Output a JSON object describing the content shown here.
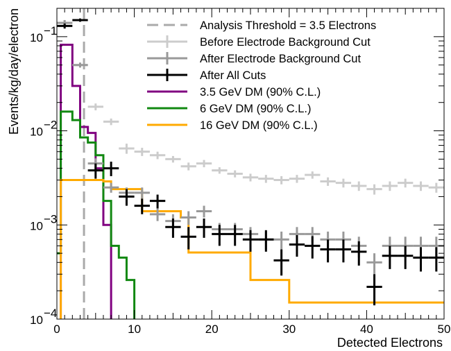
{
  "chart_data": {
    "type": "line",
    "xlabel": "Detected Electrons",
    "ylabel": "Events/kg/day/electron",
    "xlim": [
      0,
      50
    ],
    "ylim": [
      0.0001,
      0.2
    ],
    "yscale": "log",
    "grid": false,
    "legend_placement": "top-right",
    "x_ticks": [
      0,
      10,
      20,
      30,
      40,
      50
    ],
    "x_tick_labels": [
      "0",
      "10",
      "20",
      "30",
      "40",
      "50"
    ],
    "y_ticks": [
      0.0001,
      0.001,
      0.01,
      0.1
    ],
    "y_tick_labels": [
      "10",
      "10",
      "10",
      "10"
    ],
    "y_tick_exponents": [
      "−4",
      "−3",
      "−2",
      "−1"
    ],
    "threshold": {
      "x": 3.5,
      "name": "Analysis Threshold = 3.5 Electrons",
      "color": "#aaaaaa"
    },
    "series": [
      {
        "name": "Before Electrode Background Cut",
        "style": "points",
        "color": "#cccccc",
        "x_centers": [
          1,
          3,
          5,
          7,
          9,
          11,
          13,
          15,
          17,
          19,
          21,
          23,
          25,
          27,
          29,
          31,
          33,
          35,
          37,
          39,
          41,
          43,
          45,
          47,
          49
        ],
        "values": [
          0.14,
          0.05,
          0.018,
          0.0125,
          0.0065,
          0.006,
          0.0055,
          0.005,
          0.0042,
          0.0045,
          0.0038,
          0.0035,
          0.0032,
          0.0031,
          0.003,
          0.0031,
          0.0034,
          0.0029,
          0.0028,
          0.0026,
          0.0024,
          0.0026,
          0.0028,
          0.0026,
          0.0025
        ],
        "y_err": [
          0.01,
          0.003,
          0.0015,
          0.001,
          0.0008,
          0.0006,
          0.0005,
          0.0004,
          0.0004,
          0.0004,
          0.0003,
          0.0003,
          0.0003,
          0.0003,
          0.0003,
          0.0003,
          0.0003,
          0.0003,
          0.0003,
          0.0003,
          0.0003,
          0.0003,
          0.0003,
          0.0003,
          0.0003
        ]
      },
      {
        "name": "After Electrode Background Cut",
        "style": "points",
        "color": "#999999",
        "x_centers": [
          1,
          3,
          5,
          7,
          9,
          11,
          13,
          15,
          17,
          19,
          21,
          23,
          25,
          27,
          29,
          31,
          33,
          35,
          37,
          39,
          41,
          43,
          45,
          47,
          49
        ],
        "values": [
          0.14,
          0.05,
          0.0045,
          0.0025,
          0.0022,
          0.0022,
          0.0013,
          0.0011,
          0.0012,
          0.0014,
          0.0009,
          0.0009,
          0.0008,
          0.0007,
          0.0007,
          0.0008,
          0.0008,
          0.0007,
          0.0007,
          0.0006,
          0.0004,
          0.0006,
          0.0006,
          0.0006,
          0.0006
        ],
        "y_err": [
          0.01,
          0.003,
          0.0006,
          0.0003,
          0.0003,
          0.0003,
          0.0002,
          0.0002,
          0.0002,
          0.0002,
          0.00015,
          0.00015,
          0.00015,
          0.00015,
          0.00015,
          0.00015,
          0.00015,
          0.00015,
          0.00015,
          0.00015,
          0.0001,
          0.00015,
          0.00015,
          0.00015,
          0.00015
        ]
      },
      {
        "name": "After All Cuts",
        "style": "points",
        "color": "#000000",
        "x_centers": [
          1,
          3,
          5,
          7,
          9,
          11,
          13,
          15,
          17,
          19,
          21,
          23,
          25,
          27,
          29,
          31,
          33,
          35,
          37,
          39,
          41,
          43,
          45,
          47,
          49
        ],
        "values": [
          0.13,
          0.15,
          0.0038,
          0.004,
          0.002,
          0.0016,
          0.0018,
          0.00095,
          0.00075,
          0.00095,
          0.0008,
          0.0008,
          0.0007,
          0.0007,
          0.00042,
          0.00062,
          0.0006,
          0.00055,
          0.00055,
          0.00052,
          0.00022,
          0.00047,
          0.00047,
          0.00045,
          0.00045
        ],
        "y_err": [
          0.008,
          0.006,
          0.0007,
          0.0007,
          0.0004,
          0.0003,
          0.0003,
          0.00022,
          0.0002,
          0.00022,
          0.0002,
          0.0002,
          0.00018,
          0.00018,
          0.00013,
          0.00016,
          0.00016,
          0.00015,
          0.00015,
          0.00015,
          8e-05,
          0.00013,
          0.00013,
          0.00013,
          0.00013
        ]
      },
      {
        "name": "3.5 GeV DM (90% C.L.)",
        "style": "step",
        "color": "#800080",
        "bin_edges": [
          0,
          0.5,
          1,
          2,
          3,
          4,
          5,
          6,
          7,
          8,
          9,
          10
        ],
        "values": [
          5e-05,
          0.082,
          0.082,
          0.03,
          0.011,
          0.0095,
          0.004,
          0.001,
          8e-05,
          8e-05,
          8e-05
        ]
      },
      {
        "name": "6 GeV DM (90% C.L.)",
        "style": "step",
        "color": "#118811",
        "bin_edges": [
          0,
          0.5,
          1,
          2,
          3,
          4,
          5,
          6,
          7,
          8,
          9,
          10,
          11
        ],
        "values": [
          0.0005,
          0.016,
          0.016,
          0.013,
          0.0085,
          0.0075,
          0.0055,
          0.0018,
          0.0006,
          0.00045,
          0.00026,
          5e-05
        ]
      },
      {
        "name": "16 GeV DM (90% C.L.)",
        "style": "step",
        "color": "#ffaa00",
        "bin_edges": [
          0,
          0.5,
          1,
          2,
          3,
          4,
          5,
          6,
          7,
          8,
          9,
          10,
          11,
          12,
          13,
          14,
          15,
          16,
          17,
          18,
          19,
          20,
          21,
          22,
          23,
          24,
          25,
          26,
          27,
          28,
          29,
          30,
          31,
          32,
          33,
          34,
          35,
          36,
          37,
          38,
          39,
          40,
          41,
          42,
          43,
          44,
          45,
          46,
          47,
          48,
          49,
          50
        ],
        "values": [
          3e-05,
          0.003,
          0.003,
          0.003,
          0.003,
          0.003,
          0.003,
          0.0029,
          0.0024,
          0.0024,
          0.0024,
          0.0024,
          0.0014,
          0.0014,
          0.0014,
          0.0014,
          0.0014,
          0.0012,
          0.00051,
          0.00051,
          0.00051,
          0.00051,
          0.00051,
          0.00051,
          0.00051,
          0.00051,
          0.00026,
          0.00026,
          0.00026,
          0.00026,
          0.00026,
          0.00015,
          0.00015,
          0.00015,
          0.00015,
          0.00015,
          0.00015,
          0.00015,
          0.00015,
          0.00015,
          0.00015,
          0.00015,
          0.00015,
          0.00015,
          0.00015,
          0.00015,
          0.00015,
          0.00015,
          0.00015,
          0.00015,
          0.00015
        ]
      }
    ]
  }
}
